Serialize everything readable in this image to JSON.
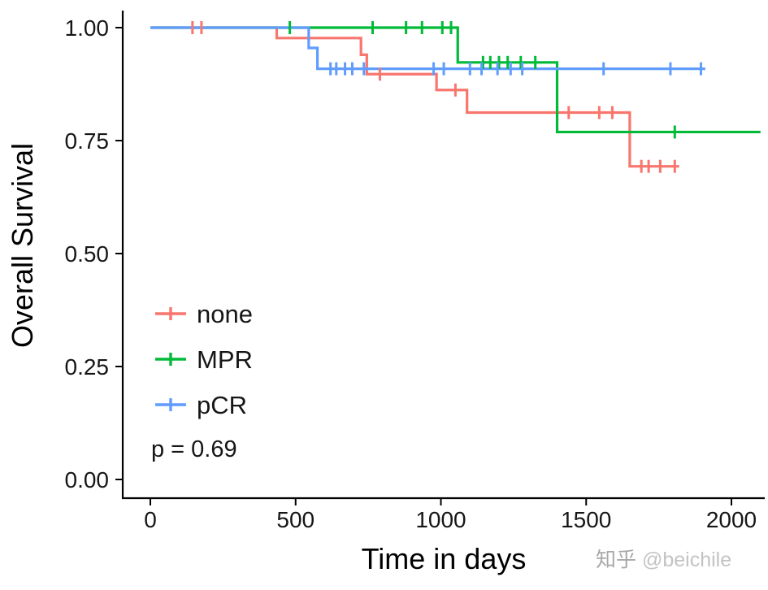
{
  "watermark": {
    "brand": "知乎",
    "handle": " @beichile"
  },
  "chart_data": {
    "type": "line",
    "chart_kind": "kaplan-meier-survival-step",
    "title": "",
    "xlabel": "Time in days",
    "ylabel": "Overall Survival",
    "p_value_label": "p = 0.69",
    "x_ticks": [
      0,
      500,
      1000,
      1500,
      2000
    ],
    "y_ticks": [
      1.0,
      0.75,
      0.5,
      0.25,
      0.0
    ],
    "y_tick_labels": [
      "1.00",
      "0.75",
      "0.50",
      "0.25",
      "0.00"
    ],
    "xlim": [
      -95,
      2110
    ],
    "ylim": [
      -0.04,
      1.035
    ],
    "grid": false,
    "legend_position": "inside-left-middle",
    "series": [
      {
        "name": "none",
        "color": "#F8766D",
        "end_time": 1820,
        "steps": [
          [
            0,
            1.0
          ],
          [
            435,
            0.977
          ],
          [
            725,
            0.94
          ],
          [
            745,
            0.897
          ],
          [
            985,
            0.862
          ],
          [
            1090,
            0.812
          ],
          [
            1650,
            0.693
          ]
        ],
        "censor_marks": [
          [
            145,
            1.0
          ],
          [
            176,
            1.0
          ],
          [
            790,
            0.897
          ],
          [
            1050,
            0.862
          ],
          [
            1440,
            0.812
          ],
          [
            1545,
            0.812
          ],
          [
            1590,
            0.812
          ],
          [
            1690,
            0.693
          ],
          [
            1715,
            0.693
          ],
          [
            1755,
            0.693
          ],
          [
            1805,
            0.693
          ]
        ]
      },
      {
        "name": "MPR",
        "color": "#00BA38",
        "end_time": 2100,
        "steps": [
          [
            0,
            1.0
          ],
          [
            1058,
            0.923
          ],
          [
            1400,
            0.769
          ]
        ],
        "censor_marks": [
          [
            480,
            1.0
          ],
          [
            765,
            1.0
          ],
          [
            880,
            1.0
          ],
          [
            935,
            1.0
          ],
          [
            1005,
            1.0
          ],
          [
            1035,
            1.0
          ],
          [
            1145,
            0.923
          ],
          [
            1170,
            0.923
          ],
          [
            1200,
            0.923
          ],
          [
            1230,
            0.923
          ],
          [
            1275,
            0.923
          ],
          [
            1325,
            0.923
          ],
          [
            1805,
            0.769
          ]
        ]
      },
      {
        "name": "pCR",
        "color": "#619CFF",
        "end_time": 1910,
        "steps": [
          [
            0,
            1.0
          ],
          [
            545,
            0.955
          ],
          [
            575,
            0.909
          ]
        ],
        "censor_marks": [
          [
            620,
            0.909
          ],
          [
            640,
            0.909
          ],
          [
            670,
            0.909
          ],
          [
            695,
            0.909
          ],
          [
            735,
            0.909
          ],
          [
            975,
            0.909
          ],
          [
            1010,
            0.909
          ],
          [
            1100,
            0.909
          ],
          [
            1140,
            0.909
          ],
          [
            1195,
            0.909
          ],
          [
            1240,
            0.909
          ],
          [
            1280,
            0.909
          ],
          [
            1560,
            0.909
          ],
          [
            1790,
            0.909
          ],
          [
            1895,
            0.909
          ]
        ]
      }
    ]
  }
}
